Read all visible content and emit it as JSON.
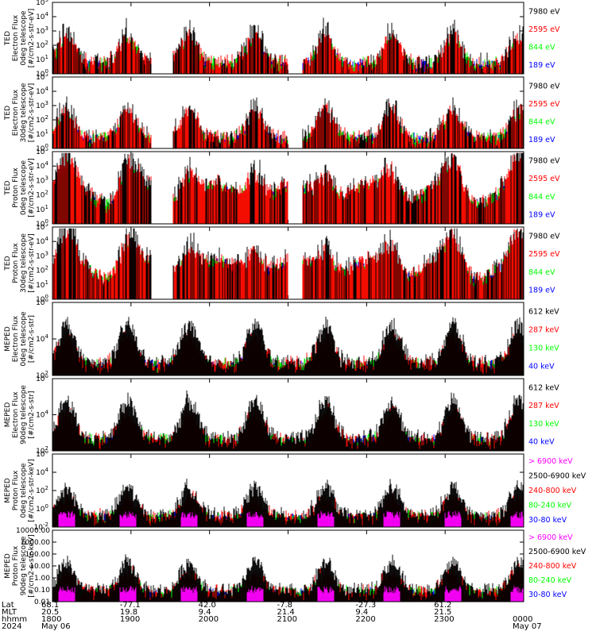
{
  "colors": {
    "black": "#000000",
    "red": "#ff0000",
    "green": "#00ff00",
    "blue": "#0000ff",
    "magenta": "#ff00ff"
  },
  "chart_data": [
    {
      "type": "line",
      "ylabel_lines": [
        "TED",
        "Electron Flux",
        "0deg telescope",
        "[#/cm2-s-str-eV]"
      ],
      "yscale": "log",
      "ylim": [
        1,
        100000
      ],
      "yticks": [
        {
          "label": "10",
          "sup": "0"
        },
        {
          "label": "10",
          "sup": "1"
        },
        {
          "label": "10",
          "sup": "2"
        },
        {
          "label": "10",
          "sup": "3"
        },
        {
          "label": "10",
          "sup": "4"
        },
        {
          "label": "10",
          "sup": "5"
        }
      ],
      "legend": [
        {
          "text": "7980 eV",
          "color": "#000000"
        },
        {
          "text": "2595 eV",
          "color": "#ff0000"
        },
        {
          "text": "844 eV",
          "color": "#00ff00"
        },
        {
          "text": "189 eV",
          "color": "#0000ff"
        }
      ]
    },
    {
      "type": "line",
      "ylabel_lines": [
        "TED",
        "Electron Flux",
        "30deg telescope",
        "[#/cm2-s-str-eV]"
      ],
      "yscale": "log",
      "ylim": [
        1,
        100000
      ],
      "yticks": [
        {
          "label": "10",
          "sup": "0"
        },
        {
          "label": "10",
          "sup": "1"
        },
        {
          "label": "10",
          "sup": "2"
        },
        {
          "label": "10",
          "sup": "3"
        },
        {
          "label": "10",
          "sup": "4"
        },
        {
          "label": "10",
          "sup": "5"
        }
      ],
      "legend": [
        {
          "text": "7980 eV",
          "color": "#000000"
        },
        {
          "text": "2595 eV",
          "color": "#ff0000"
        },
        {
          "text": "844 eV",
          "color": "#00ff00"
        },
        {
          "text": "189 eV",
          "color": "#0000ff"
        }
      ]
    },
    {
      "type": "line",
      "ylabel_lines": [
        "TED",
        "Proton Flux",
        "0deg telescope",
        "[#/cm2-s-str-eV]"
      ],
      "yscale": "log",
      "ylim": [
        1,
        100000
      ],
      "yticks": [
        {
          "label": "10",
          "sup": "0"
        },
        {
          "label": "10",
          "sup": "1"
        },
        {
          "label": "10",
          "sup": "2"
        },
        {
          "label": "10",
          "sup": "3"
        },
        {
          "label": "10",
          "sup": "4"
        },
        {
          "label": "10",
          "sup": "5"
        }
      ],
      "legend": [
        {
          "text": "7980 eV",
          "color": "#000000"
        },
        {
          "text": "2595 eV",
          "color": "#ff0000"
        },
        {
          "text": "844 eV",
          "color": "#00ff00"
        },
        {
          "text": "189 eV",
          "color": "#0000ff"
        }
      ]
    },
    {
      "type": "line",
      "ylabel_lines": [
        "TED",
        "Proton Flux",
        "30deg telescope",
        "[#/cm2-s-str-eV]"
      ],
      "yscale": "log",
      "ylim": [
        1,
        100000
      ],
      "yticks": [
        {
          "label": "10",
          "sup": "0"
        },
        {
          "label": "10",
          "sup": "1"
        },
        {
          "label": "10",
          "sup": "2"
        },
        {
          "label": "10",
          "sup": "3"
        },
        {
          "label": "10",
          "sup": "4"
        },
        {
          "label": "10",
          "sup": "5"
        }
      ],
      "legend": [
        {
          "text": "7980 eV",
          "color": "#000000"
        },
        {
          "text": "2595 eV",
          "color": "#ff0000"
        },
        {
          "text": "844 eV",
          "color": "#00ff00"
        },
        {
          "text": "189 eV",
          "color": "#0000ff"
        }
      ]
    },
    {
      "type": "line",
      "ylabel_lines": [
        "MEPED",
        "Electron Flux",
        "0deg telescope",
        "[#/cm2-s-str]"
      ],
      "yscale": "log",
      "ylim": [
        100,
        10000000
      ],
      "yticks": [
        {
          "label": "10",
          "sup": "2"
        },
        {
          "label": "10",
          "sup": "4"
        },
        {
          "label": "10",
          "sup": "6"
        }
      ],
      "legend": [
        {
          "text": "612 keV",
          "color": "#000000"
        },
        {
          "text": "287 keV",
          "color": "#ff0000"
        },
        {
          "text": "130 keV",
          "color": "#00ff00"
        },
        {
          "text": "40 keV",
          "color": "#0000ff"
        }
      ]
    },
    {
      "type": "line",
      "ylabel_lines": [
        "MEPED",
        "Electron Flux",
        "90deg telescope",
        "[#/cm2-s-str]"
      ],
      "yscale": "log",
      "ylim": [
        100,
        10000000
      ],
      "yticks": [
        {
          "label": "10",
          "sup": "2"
        },
        {
          "label": "10",
          "sup": "4"
        },
        {
          "label": "10",
          "sup": "6"
        }
      ],
      "legend": [
        {
          "text": "612 keV",
          "color": "#000000"
        },
        {
          "text": "287 keV",
          "color": "#ff0000"
        },
        {
          "text": "130 keV",
          "color": "#00ff00"
        },
        {
          "text": "40 keV",
          "color": "#0000ff"
        }
      ]
    },
    {
      "type": "line",
      "ylabel_lines": [
        "MEPED",
        "Proton Flux",
        "0deg telescope",
        "[#/cm2-s-str-keV]"
      ],
      "yscale": "log",
      "ylim": [
        0.01,
        1000000
      ],
      "yticks": [
        {
          "label": "10",
          "sup": "-2"
        },
        {
          "label": "10",
          "sup": "0"
        },
        {
          "label": "10",
          "sup": "2"
        },
        {
          "label": "10",
          "sup": "4"
        },
        {
          "label": "10",
          "sup": "6"
        }
      ],
      "legend": [
        {
          "text": "> 6900 keV",
          "color": "#ff00ff"
        },
        {
          "text": "2500-6900 keV",
          "color": "#000000"
        },
        {
          "text": "240-800 keV",
          "color": "#ff0000"
        },
        {
          "text": "80-240 keV",
          "color": "#00ff00"
        },
        {
          "text": "30-80 keV",
          "color": "#0000ff"
        }
      ]
    },
    {
      "type": "line",
      "ylabel_lines": [
        "MEPED",
        "Proton Flux",
        "90deg telescope",
        "[#/cm2-s-str-keV]"
      ],
      "yscale": "log",
      "ylim": [
        0.01,
        10000
      ],
      "yticks": [
        {
          "label": "0.01"
        },
        {
          "label": "0.10"
        },
        {
          "label": "1.00"
        },
        {
          "label": "10.00"
        },
        {
          "label": "100.00"
        },
        {
          "label": "1000.00"
        },
        {
          "label": "10000.00"
        }
      ],
      "legend": [
        {
          "text": "> 6900 keV",
          "color": "#ff00ff"
        },
        {
          "text": "2500-6900 keV",
          "color": "#000000"
        },
        {
          "text": "240-800 keV",
          "color": "#ff0000"
        },
        {
          "text": "80-240 keV",
          "color": "#00ff00"
        },
        {
          "text": "30-80 keV",
          "color": "#0000ff"
        }
      ]
    }
  ],
  "footer": {
    "row_labels": [
      "Lat",
      "MLT",
      "hhmm",
      "2024"
    ],
    "ticks": [
      {
        "lat": "68.1",
        "mlt": "20.5",
        "hhmm": "1800",
        "date": "May 06"
      },
      {
        "lat": "-77.1",
        "mlt": "19.8",
        "hhmm": "1900",
        "date": ""
      },
      {
        "lat": "42.0",
        "mlt": "9.4",
        "hhmm": "2000",
        "date": ""
      },
      {
        "lat": "-7.8",
        "mlt": "21.4",
        "hhmm": "2100",
        "date": ""
      },
      {
        "lat": "-27.3",
        "mlt": "9.4",
        "hhmm": "2200",
        "date": ""
      },
      {
        "lat": "61.2",
        "mlt": "21.5",
        "hhmm": "2300",
        "date": ""
      },
      {
        "lat": "",
        "mlt": "",
        "hhmm": "0000",
        "date": "May 07"
      }
    ]
  }
}
